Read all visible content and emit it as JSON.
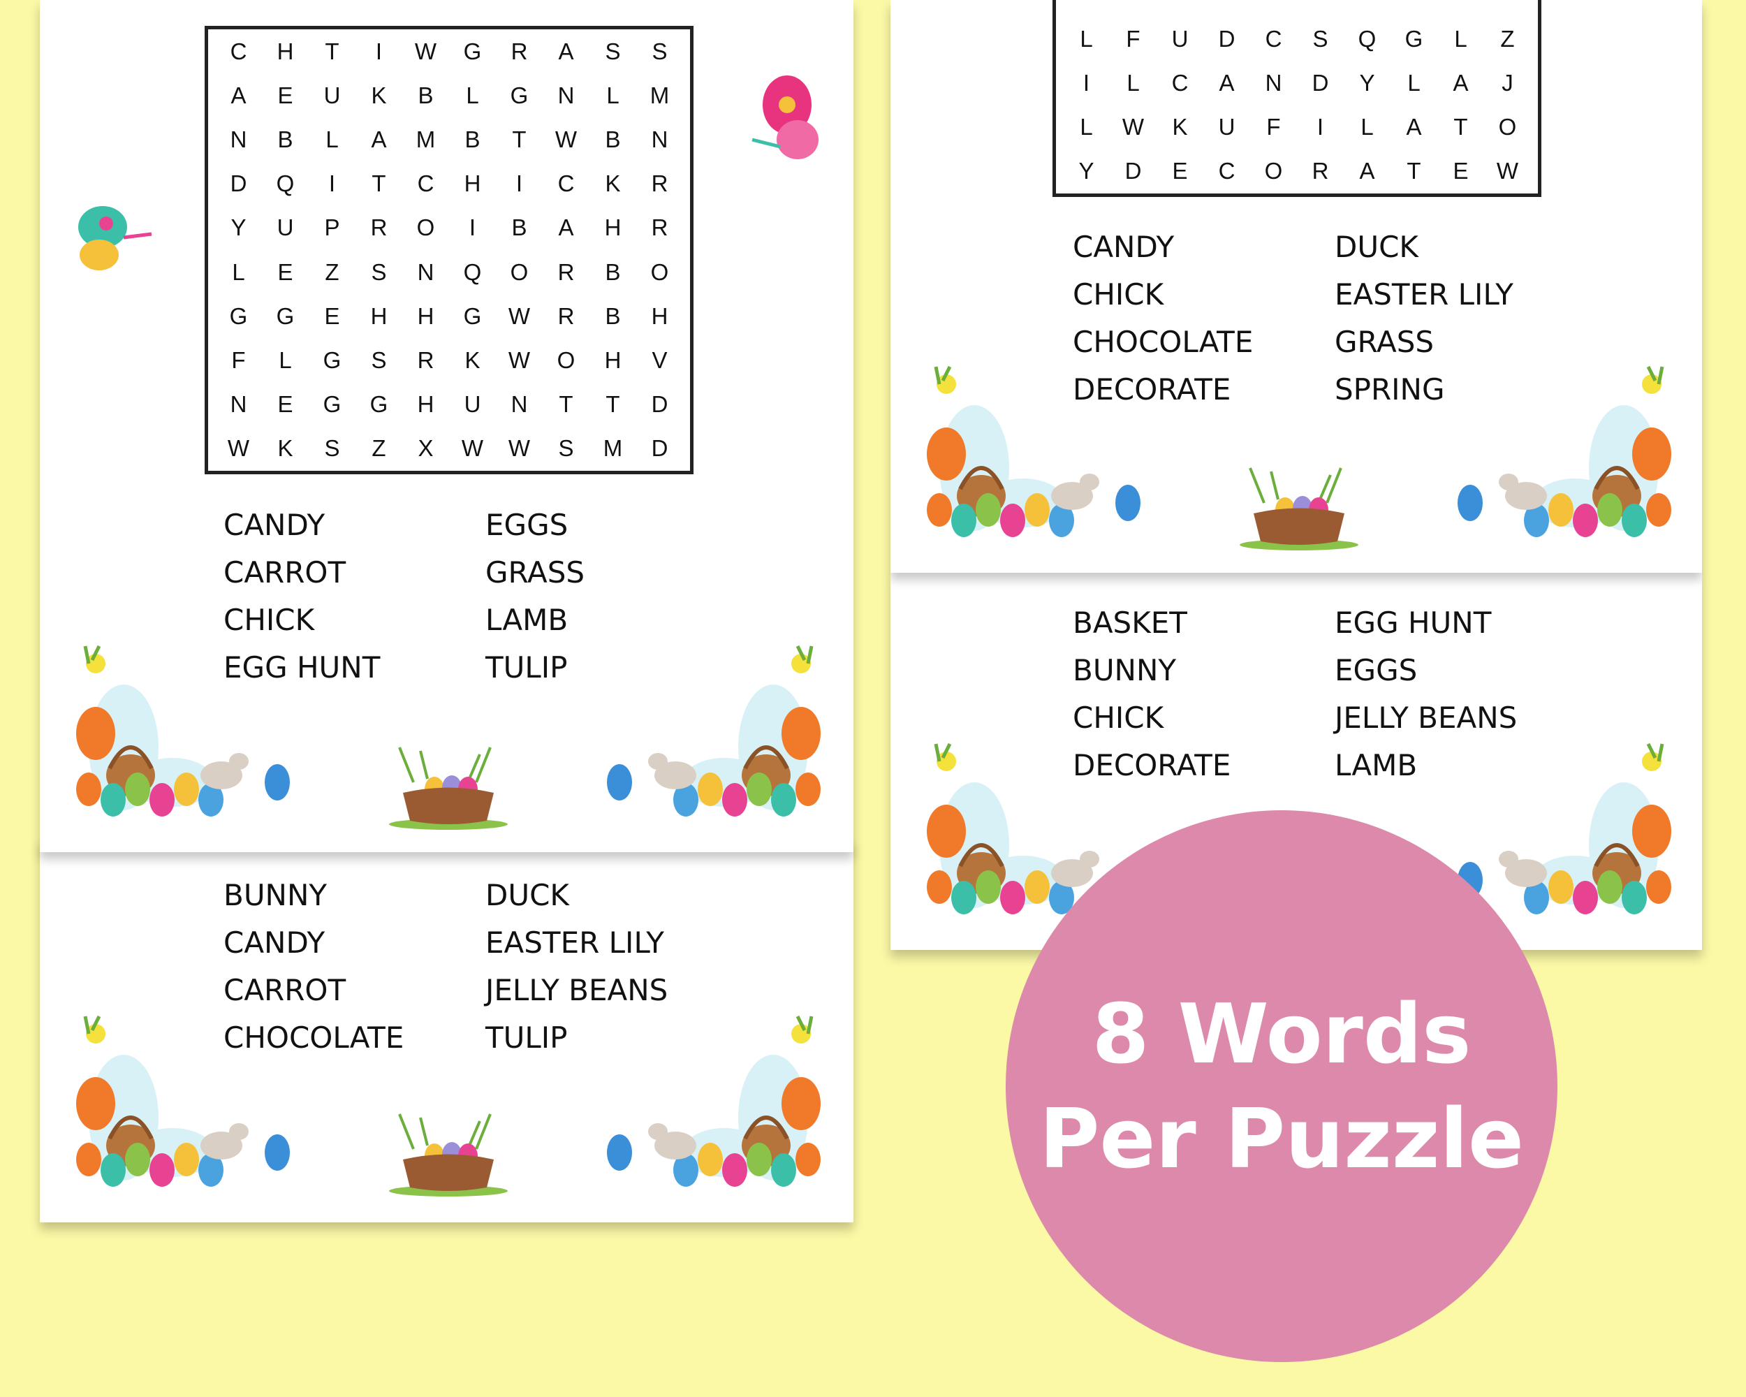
{
  "puzzle_1": {
    "grid": [
      "CHTIWGRASS",
      "AEUKBLGNLM",
      "NBLAMBTWBN",
      "DQITCHICKR",
      "YUPROIBAHR",
      "LEZSNQORBO",
      "GGEHHGWRBH",
      "FLGSRKWOHV",
      "NEGGHUNTTD",
      "WKSZXWWSMD"
    ],
    "words": [
      "CANDY",
      "EGGS",
      "CARROT",
      "GRASS",
      "CHICK",
      "LAMB",
      "EGG HUNT",
      "TULIP"
    ]
  },
  "puzzle_2": {
    "words": [
      "BUNNY",
      "DUCK",
      "CANDY",
      "EASTER LILY",
      "CARROT",
      "JELLY BEANS",
      "CHOCOLATE",
      "TULIP"
    ]
  },
  "puzzle_3": {
    "grid": [
      "LFUDCSQGLZ",
      "ILCANDYLAJ",
      "LWKUFILATO",
      "YDECORATEW"
    ],
    "words": [
      "CANDY",
      "DUCK",
      "CHICK",
      "EASTER LILY",
      "CHOCOLATE",
      "GRASS",
      "DECORATE",
      "SPRING"
    ]
  },
  "puzzle_4": {
    "words": [
      "BASKET",
      "EGG HUNT",
      "BUNNY",
      "EGGS",
      "CHICK",
      "JELLY BEANS",
      "DECORATE",
      "LAMB"
    ]
  },
  "badge": {
    "line1": "8 Words",
    "line2": "Per Puzzle",
    "color": "#dc89ab"
  },
  "colors": {
    "background": "#fbf8a6"
  }
}
